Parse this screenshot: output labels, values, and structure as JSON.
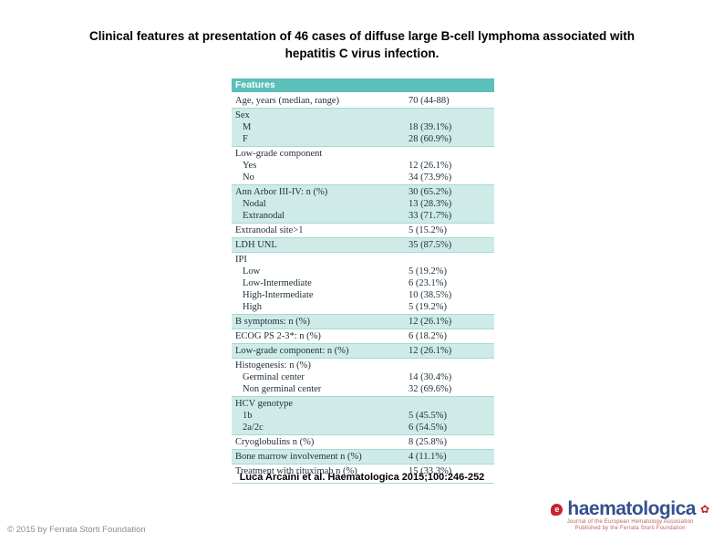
{
  "slide": {
    "title_lines": [
      "Clinical features at presentation of 46 cases of diffuse large B-cell lymphoma associated with",
      "hepatitis C virus infection."
    ],
    "citation": "Luca Arcaini et al. Haematologica 2015;100:246-252",
    "copyright": "© 2015 by Ferrata Storti Foundation"
  },
  "logo": {
    "wordmark": "haematologica",
    "drop_letter": "e",
    "ornament": "✿",
    "subtitle_line1": "Journal of the European Hematology Association",
    "subtitle_line2": "Published by the Ferrata Storti Foundation"
  },
  "colors": {
    "header_bg": "#5bbfba",
    "shade_bg": "#ceebe8",
    "rule": "#a6d9d5",
    "wordmark_blue": "#35508e",
    "logo_red": "#c7242c"
  },
  "table": {
    "header": "Features",
    "groups": [
      {
        "shaded": false,
        "rows": [
          {
            "label": "Age, years (median, range)",
            "value": "70 (44-88)",
            "indent": false
          }
        ]
      },
      {
        "shaded": true,
        "rows": [
          {
            "label": "Sex",
            "value": "",
            "indent": false
          },
          {
            "label": "M",
            "value": "18 (39.1%)",
            "indent": true
          },
          {
            "label": "F",
            "value": "28 (60.9%)",
            "indent": true
          }
        ]
      },
      {
        "shaded": false,
        "rows": [
          {
            "label": "Low-grade component",
            "value": "",
            "indent": false
          },
          {
            "label": "Yes",
            "value": "12 (26.1%)",
            "indent": true
          },
          {
            "label": "No",
            "value": "34 (73.9%)",
            "indent": true
          }
        ]
      },
      {
        "shaded": true,
        "rows": [
          {
            "label": "Ann Arbor III-IV: n (%)",
            "value": "30 (65.2%)",
            "indent": false
          },
          {
            "label": "Nodal",
            "value": "13 (28.3%)",
            "indent": true
          },
          {
            "label": "Extranodal",
            "value": "33 (71.7%)",
            "indent": true
          }
        ]
      },
      {
        "shaded": false,
        "rows": [
          {
            "label": "Extranodal site>1",
            "value": "5 (15.2%)",
            "indent": false
          }
        ]
      },
      {
        "shaded": true,
        "rows": [
          {
            "label": "LDH UNL",
            "value": "35 (87.5%)",
            "indent": false
          }
        ]
      },
      {
        "shaded": false,
        "rows": [
          {
            "label": "IPI",
            "value": "",
            "indent": false
          },
          {
            "label": "Low",
            "value": "5 (19.2%)",
            "indent": true
          },
          {
            "label": "Low-Intermediate",
            "value": "6 (23.1%)",
            "indent": true
          },
          {
            "label": "High-Intermediate",
            "value": "10 (38.5%)",
            "indent": true
          },
          {
            "label": "High",
            "value": "5 (19.2%)",
            "indent": true
          }
        ]
      },
      {
        "shaded": true,
        "rows": [
          {
            "label": "B symptoms: n (%)",
            "value": "12 (26.1%)",
            "indent": false
          }
        ]
      },
      {
        "shaded": false,
        "rows": [
          {
            "label": "ECOG PS 2-3*: n (%)",
            "value": "6 (18.2%)",
            "indent": false
          }
        ]
      },
      {
        "shaded": true,
        "rows": [
          {
            "label": "Low-grade component: n (%)",
            "value": "12 (26.1%)",
            "indent": false
          }
        ]
      },
      {
        "shaded": false,
        "rows": [
          {
            "label": "Histogenesis: n (%)",
            "value": "",
            "indent": false
          },
          {
            "label": "Germinal center",
            "value": "14 (30.4%)",
            "indent": true
          },
          {
            "label": "Non germinal center",
            "value": "32 (69.6%)",
            "indent": true
          }
        ]
      },
      {
        "shaded": true,
        "rows": [
          {
            "label": "HCV genotype",
            "value": "",
            "indent": false
          },
          {
            "label": "1b",
            "value": "5 (45.5%)",
            "indent": true
          },
          {
            "label": "2a/2c",
            "value": "6 (54.5%)",
            "indent": true
          }
        ]
      },
      {
        "shaded": false,
        "rows": [
          {
            "label": "Cryoglobulins n (%)",
            "value": "8 (25.8%)",
            "indent": false
          }
        ]
      },
      {
        "shaded": true,
        "rows": [
          {
            "label": "Bone marrow involvement n (%)",
            "value": "4 (11.1%)",
            "indent": false
          }
        ]
      },
      {
        "shaded": false,
        "rows": [
          {
            "label": "Treatment with rituximab n (%)",
            "value": "15 (33.3%)",
            "indent": false
          }
        ]
      }
    ]
  }
}
